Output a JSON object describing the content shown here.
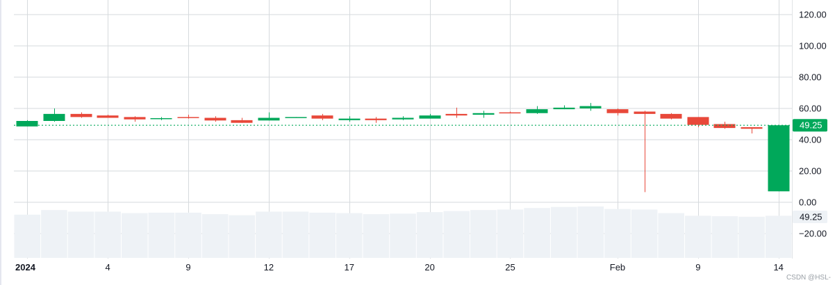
{
  "chart_data": {
    "type": "candlestick",
    "title": "",
    "xlabel": "",
    "ylabel": "",
    "ylim": [
      -20,
      120
    ],
    "grid": true,
    "y_ticks": [
      "120.00",
      "100.00",
      "80.00",
      "60.00",
      "40.00",
      "20.00",
      "0.00",
      "-20.00"
    ],
    "y_tick_values": [
      120,
      100,
      80,
      60,
      40,
      20,
      0,
      -20
    ],
    "x_ticks": [
      {
        "label": "2024",
        "index": 0,
        "bold": true
      },
      {
        "label": "4",
        "index": 3,
        "bold": false
      },
      {
        "label": "9",
        "index": 6,
        "bold": false
      },
      {
        "label": "12",
        "index": 9,
        "bold": false
      },
      {
        "label": "17",
        "index": 12,
        "bold": false
      },
      {
        "label": "20",
        "index": 15,
        "bold": false
      },
      {
        "label": "25",
        "index": 18,
        "bold": false
      },
      {
        "label": "Feb",
        "index": 22,
        "bold": false
      },
      {
        "label": "9",
        "index": 25,
        "bold": false
      },
      {
        "label": "14",
        "index": 28,
        "bold": false
      }
    ],
    "last_price": 49.25,
    "last_price_label": "49.25",
    "volume_label": "49.25",
    "colors": {
      "up": "#00a85a",
      "down": "#e8483a",
      "volume": "#eef2f6",
      "grid": "#d6dadd"
    },
    "candles": [
      {
        "open": 48.5,
        "close": 52.0,
        "high": 52.5,
        "low": 48.5
      },
      {
        "open": 52.0,
        "close": 56.5,
        "high": 60.0,
        "low": 51.5
      },
      {
        "open": 56.5,
        "close": 54.5,
        "high": 57.5,
        "low": 54.0
      },
      {
        "open": 55.5,
        "close": 54.0,
        "high": 56.0,
        "low": 54.0
      },
      {
        "open": 54.5,
        "close": 53.0,
        "high": 55.0,
        "low": 51.5
      },
      {
        "open": 53.3,
        "close": 53.8,
        "high": 54.5,
        "low": 52.5
      },
      {
        "open": 54.5,
        "close": 54.0,
        "high": 56.0,
        "low": 53.5
      },
      {
        "open": 54.0,
        "close": 52.3,
        "high": 55.0,
        "low": 51.5
      },
      {
        "open": 52.5,
        "close": 50.8,
        "high": 54.0,
        "low": 50.8
      },
      {
        "open": 52.3,
        "close": 54.0,
        "high": 57.5,
        "low": 52.3
      },
      {
        "open": 54.0,
        "close": 54.5,
        "high": 54.5,
        "low": 54.0
      },
      {
        "open": 55.5,
        "close": 53.5,
        "high": 56.5,
        "low": 52.5
      },
      {
        "open": 52.5,
        "close": 53.5,
        "high": 55.0,
        "low": 51.5
      },
      {
        "open": 53.5,
        "close": 52.5,
        "high": 54.5,
        "low": 50.8
      },
      {
        "open": 53.0,
        "close": 54.0,
        "high": 55.0,
        "low": 52.5
      },
      {
        "open": 53.5,
        "close": 55.5,
        "high": 56.5,
        "low": 53.5
      },
      {
        "open": 56.5,
        "close": 55.5,
        "high": 60.5,
        "low": 54.0
      },
      {
        "open": 56.0,
        "close": 57.0,
        "high": 58.5,
        "low": 54.0
      },
      {
        "open": 57.5,
        "close": 57.0,
        "high": 58.0,
        "low": 57.0
      },
      {
        "open": 57.0,
        "close": 59.5,
        "high": 61.5,
        "low": 56.5
      },
      {
        "open": 59.5,
        "close": 60.5,
        "high": 62.0,
        "low": 59.5
      },
      {
        "open": 60.0,
        "close": 61.5,
        "high": 63.5,
        "low": 58.5
      },
      {
        "open": 59.5,
        "close": 57.0,
        "high": 60.0,
        "low": 55.5
      },
      {
        "open": 58.0,
        "close": 56.5,
        "high": 58.5,
        "low": 6.5
      },
      {
        "open": 56.5,
        "close": 53.5,
        "high": 57.0,
        "low": 53.0
      },
      {
        "open": 54.5,
        "close": 49.5,
        "high": 54.5,
        "low": 48.0
      },
      {
        "open": 50.0,
        "close": 47.5,
        "high": 51.5,
        "low": 47.0
      },
      {
        "open": 48.0,
        "close": 47.0,
        "high": 48.0,
        "low": 44.0
      },
      {
        "open": 7.0,
        "close": 49.25,
        "high": 49.5,
        "low": 7.0
      }
    ],
    "volume_rel": [
      0.84,
      0.93,
      0.9,
      0.9,
      0.87,
      0.88,
      0.88,
      0.85,
      0.83,
      0.9,
      0.9,
      0.88,
      0.87,
      0.85,
      0.86,
      0.89,
      0.91,
      0.93,
      0.94,
      0.97,
      0.99,
      1.0,
      0.95,
      0.94,
      0.87,
      0.82,
      0.81,
      0.8,
      0.82
    ]
  },
  "watermark": "CSDN @HSL-"
}
